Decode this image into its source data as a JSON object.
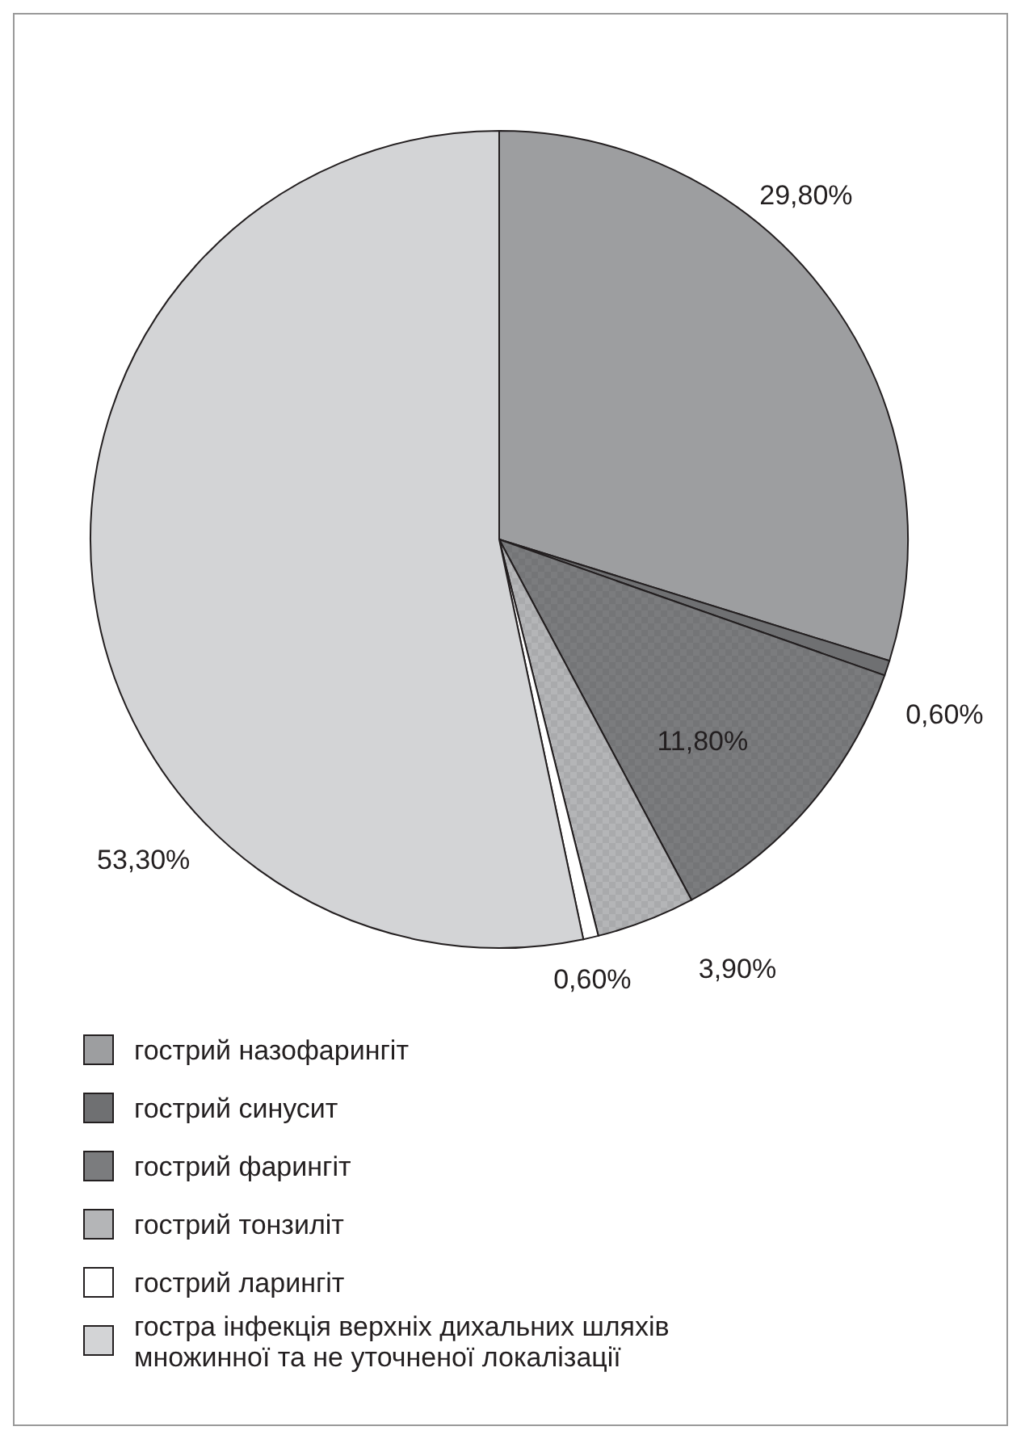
{
  "chart_data": {
    "type": "pie",
    "categories": [
      "гострий назофарингіт",
      "гострий синусит",
      "гострий фарингіт",
      "гострий тонзиліт",
      "гострий ларингіт",
      "гостра інфекція верхніх дихальних шляхів множинної та не уточненої локалізації"
    ],
    "values": [
      29.8,
      0.6,
      11.8,
      3.9,
      0.6,
      53.3
    ],
    "colors": [
      "#9d9ea0",
      "#6f7072",
      "#7b7c7e",
      "#b4b5b7",
      "#ffffff",
      "#d3d4d6"
    ],
    "value_labels": [
      "29,80%",
      "0,60%",
      "11,80%",
      "3,90%",
      "0,60%",
      "53,30%"
    ],
    "legend": "bottom left"
  }
}
